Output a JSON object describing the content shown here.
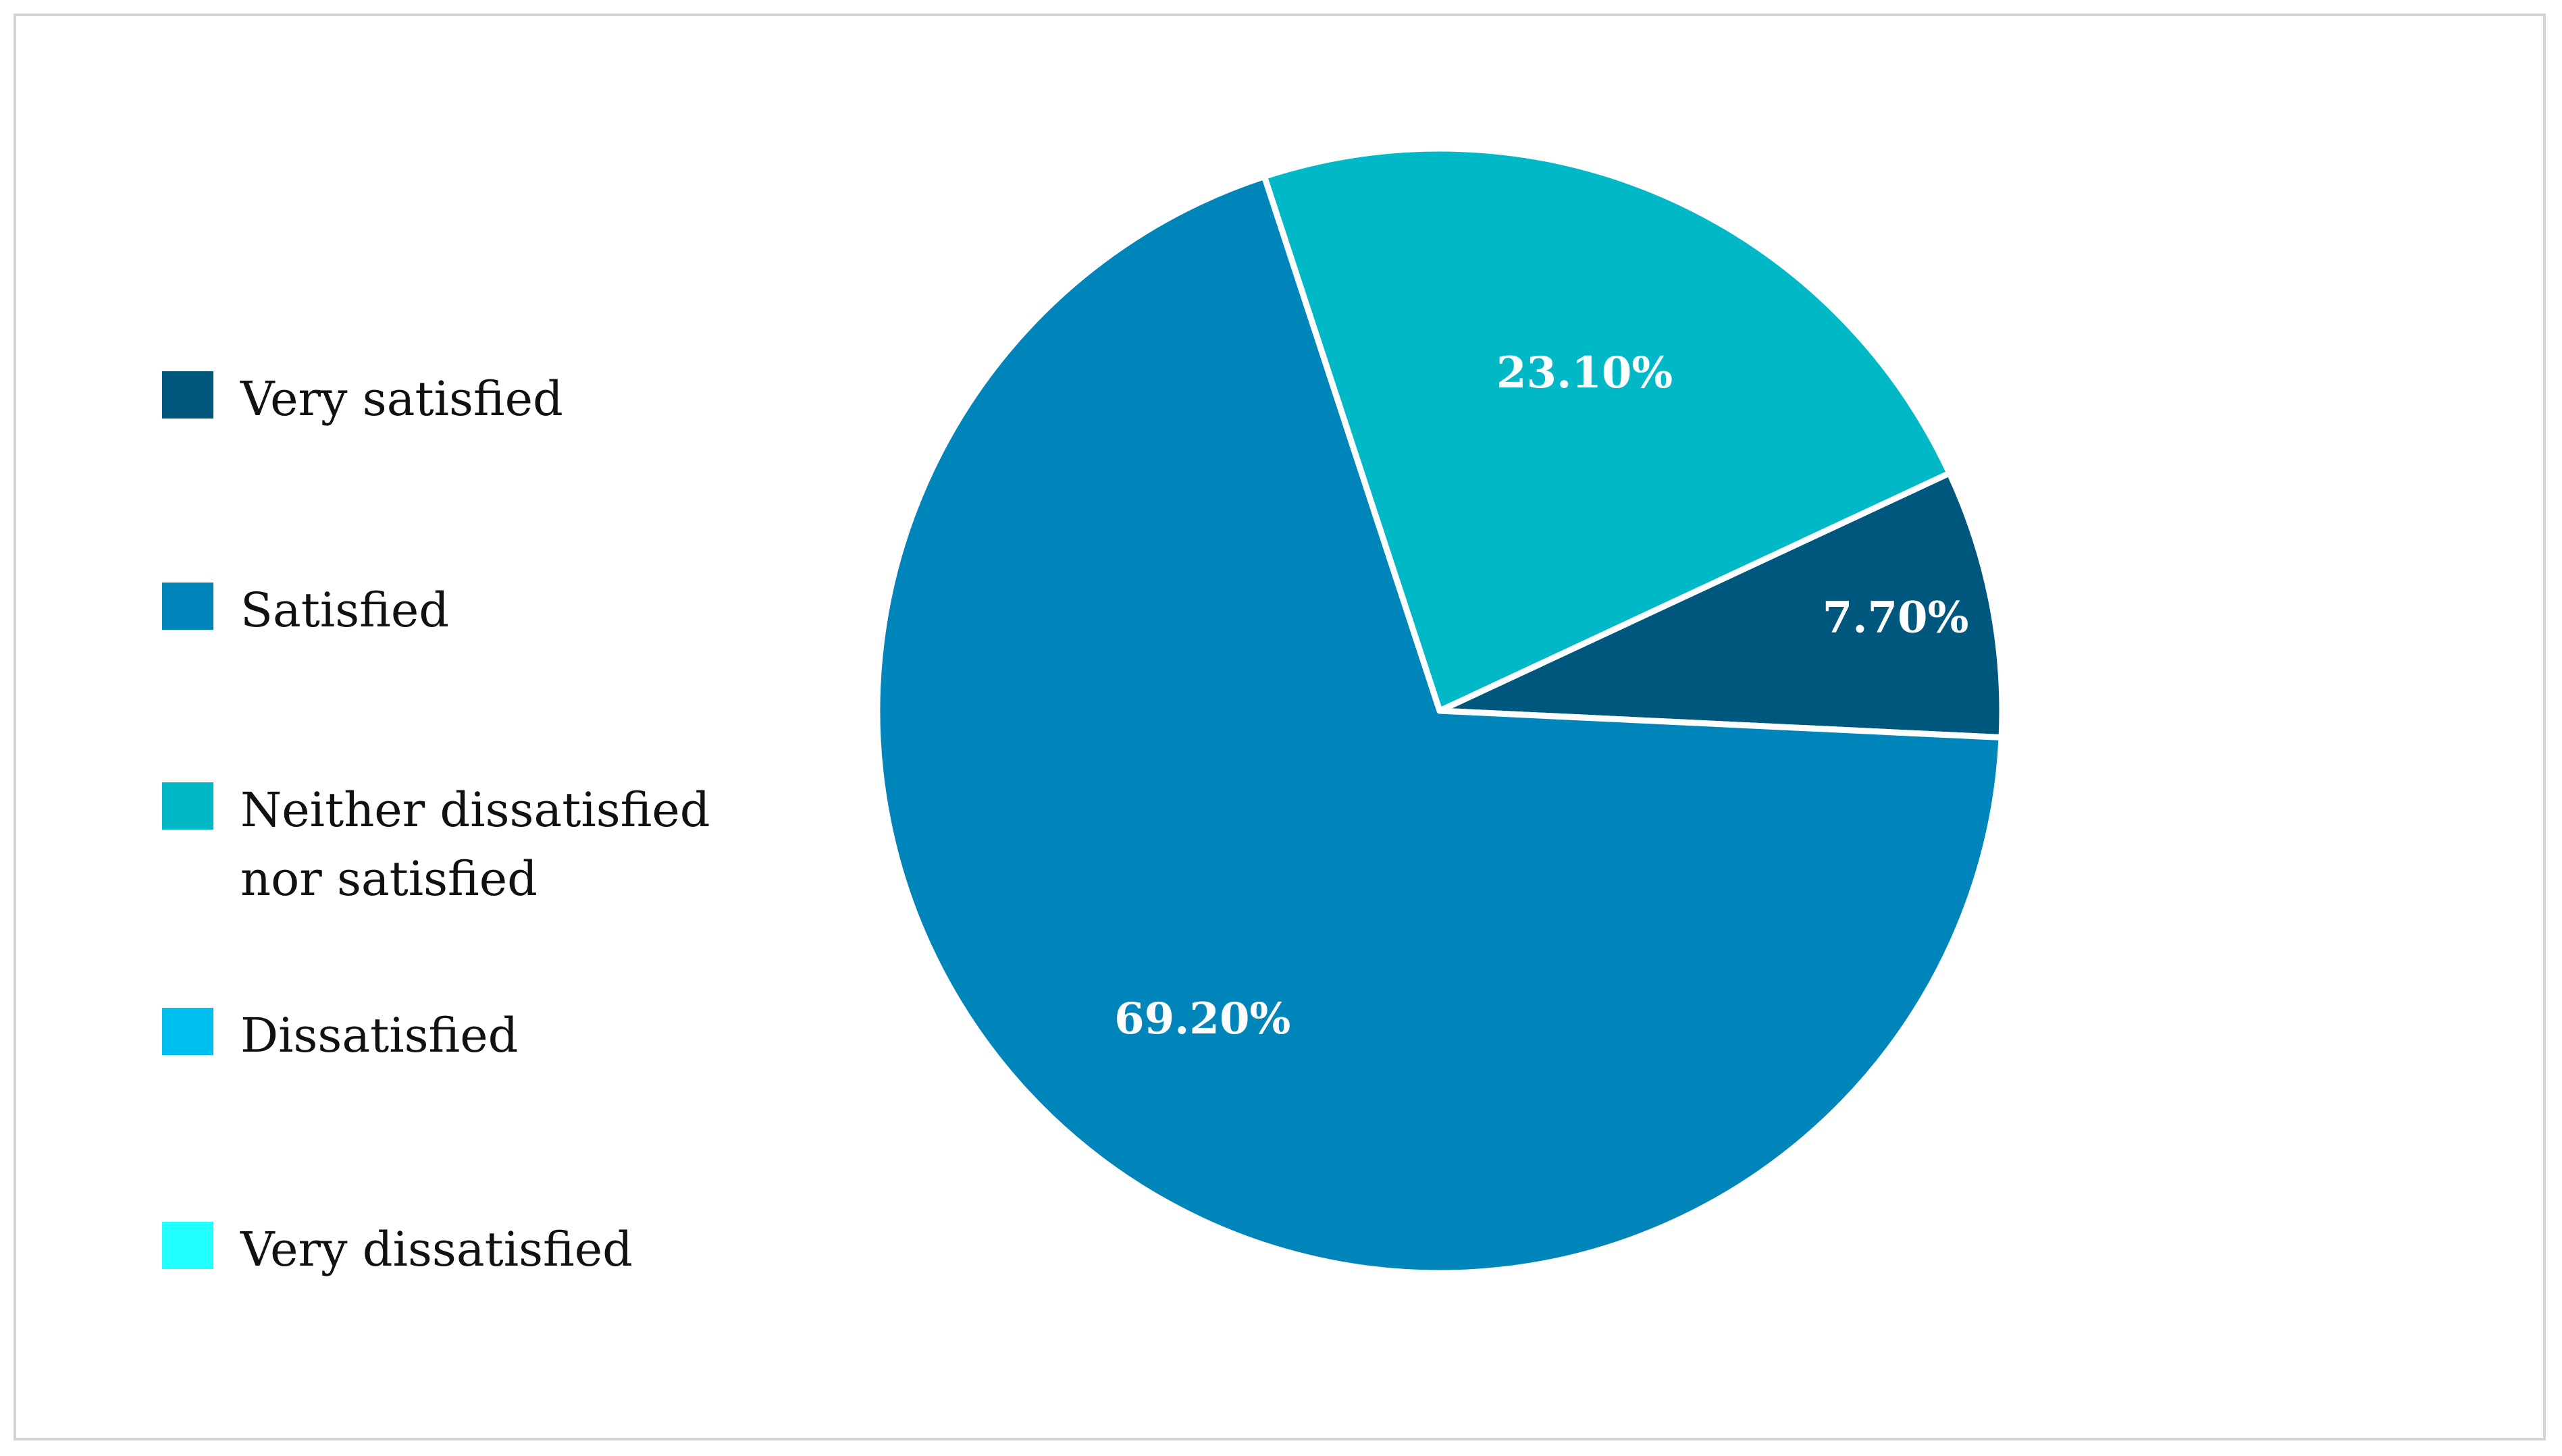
{
  "chart_data": {
    "type": "pie",
    "title": "",
    "slices": [
      {
        "label": "Very satisfied",
        "value": 7.7,
        "display": "7.70%",
        "color": "#00577d"
      },
      {
        "label": "Satisfied",
        "value": 69.2,
        "display": "69.20%",
        "color": "#0085bb"
      },
      {
        "label": "Neither dissatisfied\nnor satisfied",
        "value": 23.1,
        "display": "23.10%",
        "color": "#00b8c6"
      },
      {
        "label": "Dissatisfied",
        "value": 0,
        "display": "",
        "color": "#00c0f0"
      },
      {
        "label": "Very dissatisfied",
        "value": 0,
        "display": "",
        "color": "#22ffff"
      }
    ],
    "legend_position": "left"
  }
}
